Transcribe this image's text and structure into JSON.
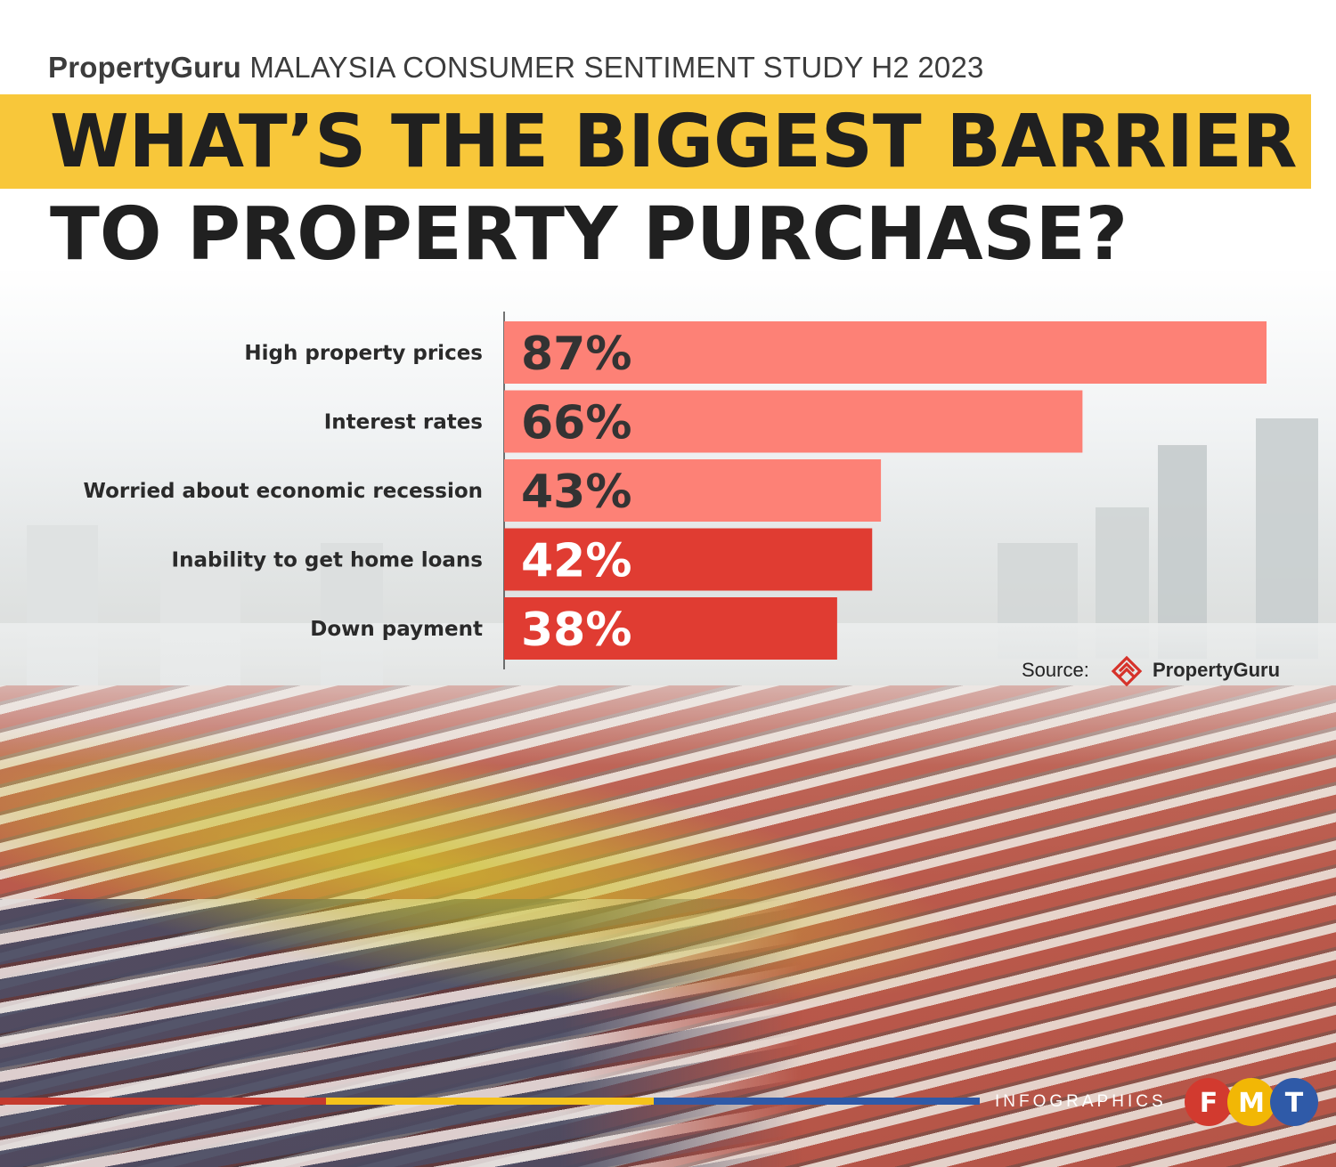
{
  "header": {
    "brand": "PropertyGuru",
    "kicker": "MALAYSIA CONSUMER SENTIMENT STUDY H2 2023",
    "title_line1": "WHAT’S THE BIGGEST BARRIER",
    "title_line2": "TO PROPERTY PURCHASE?"
  },
  "colors": {
    "title_band": "#f8c73a",
    "bar_light": "#fd8176",
    "bar_dark": "#e03c32",
    "title_text": "#202020"
  },
  "chart_data": {
    "type": "bar",
    "orientation": "horizontal",
    "title": "WHAT’S THE BIGGEST BARRIER TO PROPERTY PURCHASE?",
    "categories": [
      "High property prices",
      "Interest rates",
      "Worried about economic recession",
      "Inability to get home loans",
      "Down payment"
    ],
    "values": [
      87,
      66,
      43,
      42,
      38
    ],
    "value_labels": [
      "87%",
      "66%",
      "43%",
      "42%",
      "38%"
    ],
    "bar_colors": [
      "#fd8176",
      "#fd8176",
      "#fd8176",
      "#e03c32",
      "#e03c32"
    ],
    "unit": "%",
    "xlim": [
      0,
      87
    ],
    "grid": false,
    "legend": "none"
  },
  "source": {
    "label": "Source:",
    "name": "PropertyGuru",
    "icon": "propertyguru-logo-icon"
  },
  "footer": {
    "tag": "INFOGRAPHICS",
    "logo_letters": [
      "F",
      "M",
      "T"
    ],
    "logo_colors": [
      "#d23a2f",
      "#f2b705",
      "#2f5aa8"
    ]
  }
}
